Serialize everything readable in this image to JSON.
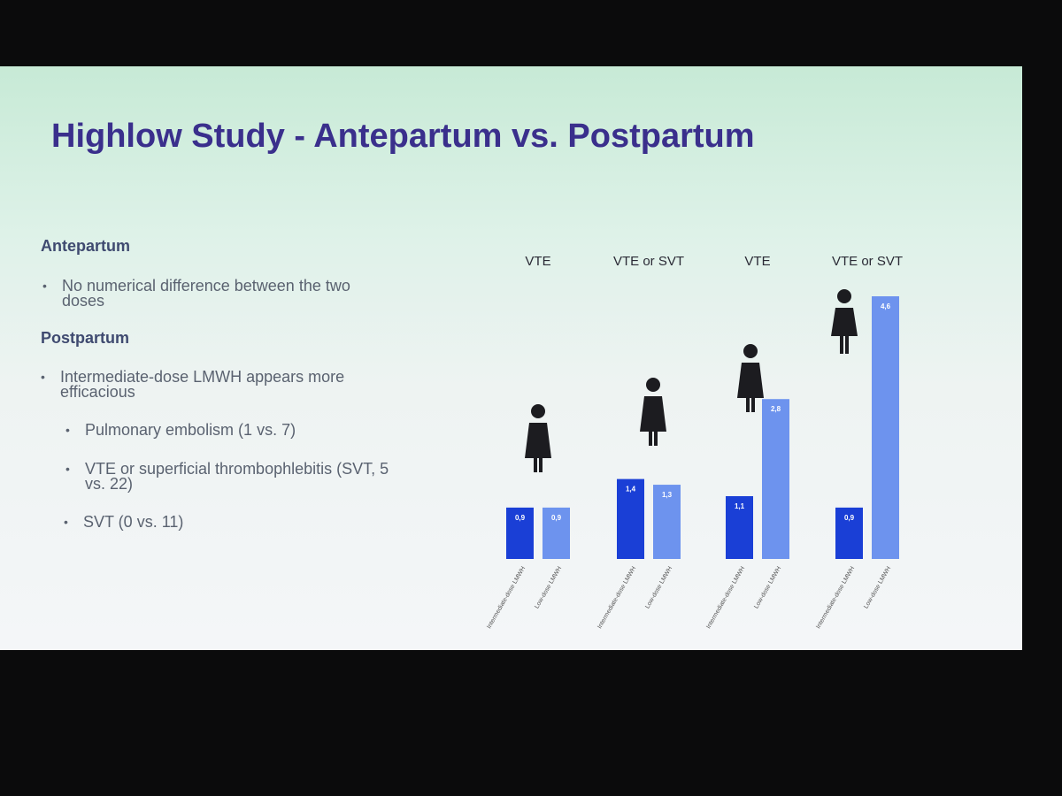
{
  "slide": {
    "title": "Highlow Study - Antepartum vs. Postpartum",
    "sections": [
      {
        "heading": "Antepartum",
        "bullets": [
          {
            "text": "No numerical difference between the two doses"
          }
        ]
      },
      {
        "heading": "Postpartum",
        "bullets": [
          {
            "text": "Intermediate-dose LMWH appears more efficacious",
            "sub": [
              "Pulmonary embolism (1 vs. 7)",
              "VTE or superficial thrombophlebitis (SVT, 5 vs. 22)",
              "SVT (0 vs. 11)"
            ]
          }
        ]
      }
    ]
  },
  "chart_data": {
    "type": "bar",
    "categories": [
      "VTE",
      "VTE or SVT",
      "VTE",
      "VTE or SVT"
    ],
    "series": [
      {
        "name": "Intermediate-dose LMWH",
        "color": "#1a3fd6",
        "values": [
          0.9,
          1.4,
          1.1,
          0.9
        ],
        "value_labels": [
          "0,9",
          "1,4",
          "1,1",
          "0,9"
        ]
      },
      {
        "name": "Low-dose LMWH",
        "color": "#6d93ee",
        "values": [
          0.9,
          1.3,
          2.8,
          4.6
        ],
        "value_labels": [
          "0,9",
          "1,3",
          "2,8",
          "4,6"
        ]
      }
    ]
  }
}
